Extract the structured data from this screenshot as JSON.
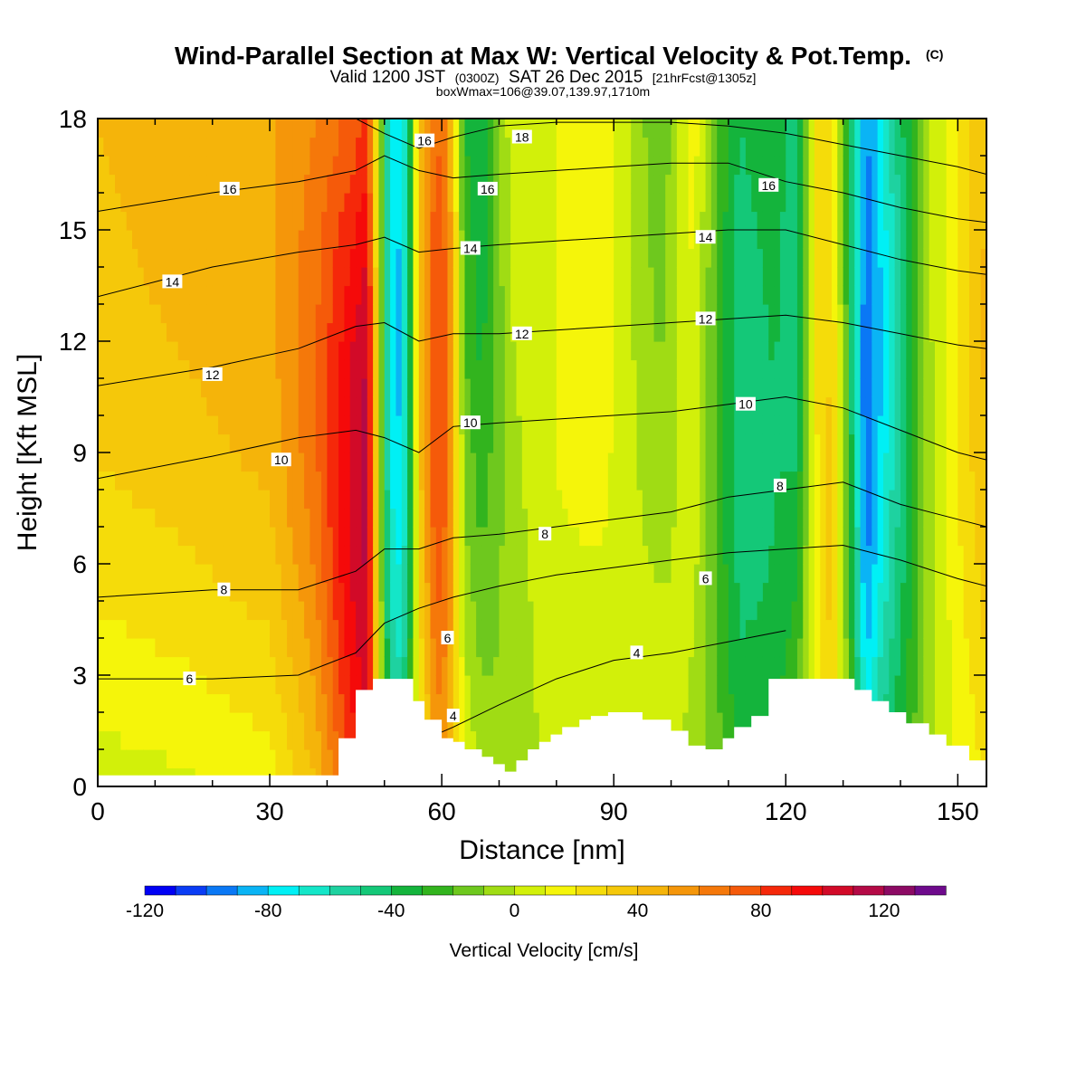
{
  "titles": {
    "main": "Wind-Parallel Section at Max W: Vertical Velocity & Pot.Temp.",
    "copyright": "(C)",
    "valid_prefix": "Valid 1200 JST",
    "valid_utc": "(0300Z)",
    "valid_date": "SAT 26 Dec 2015",
    "valid_fcst": "[21hrFcst@1305z]",
    "box_info": "boxWmax=106@39.07,139.97,1710m"
  },
  "chart_data": {
    "type": "heatmap",
    "xlabel": "Distance [nm]",
    "ylabel": "Height [Kft MSL]",
    "xlim": [
      0,
      155
    ],
    "ylim": [
      0,
      18
    ],
    "x_ticks": [
      0,
      30,
      60,
      90,
      120,
      150
    ],
    "y_ticks": [
      0,
      3,
      6,
      9,
      12,
      15,
      18
    ],
    "colorbar": {
      "label": "Vertical Velocity [cm/s]",
      "ticks": [
        -120,
        -80,
        -40,
        0,
        40,
        80,
        120
      ],
      "levels": [
        -120,
        -110,
        -100,
        -90,
        -80,
        -70,
        -60,
        -50,
        -40,
        -30,
        -20,
        -10,
        0,
        10,
        20,
        30,
        40,
        50,
        60,
        70,
        80,
        90,
        100,
        110,
        120,
        130,
        140
      ],
      "colors": [
        "#0000f5",
        "#0a3cf5",
        "#0a78f5",
        "#0ab4f5",
        "#00f0f5",
        "#14e6c8",
        "#1ed2a0",
        "#14c878",
        "#14b43c",
        "#32b41e",
        "#6ec81e",
        "#a0dc14",
        "#d2f00a",
        "#f5f50a",
        "#f5dc0a",
        "#f5c80a",
        "#f5b40a",
        "#f5960a",
        "#f5780a",
        "#f55a0a",
        "#f5280a",
        "#f50a0a",
        "#d20a28",
        "#b40a46",
        "#8c0a64",
        "#6e0a8c"
      ]
    },
    "w_bands": [
      {
        "x": 0,
        "w_low": 5,
        "w_high": 40
      },
      {
        "x": 15,
        "w_low": 8,
        "w_high": 45
      },
      {
        "x": 30,
        "w_low": 15,
        "w_high": 48
      },
      {
        "x": 38,
        "w_low": 40,
        "w_high": 60
      },
      {
        "x": 44,
        "w_low": 80,
        "w_high": 72
      },
      {
        "x": 47,
        "w_low": 90,
        "w_high": 80
      },
      {
        "x": 50,
        "w_low": -20,
        "w_high": -40
      },
      {
        "x": 52,
        "w_low": -45,
        "w_high": -80
      },
      {
        "x": 54,
        "w_low": -30,
        "w_high": -60
      },
      {
        "x": 56,
        "w_low": 10,
        "w_high": 40
      },
      {
        "x": 59,
        "w_low": 50,
        "w_high": 70
      },
      {
        "x": 61,
        "w_low": 45,
        "w_high": 60
      },
      {
        "x": 64,
        "w_low": 10,
        "w_high": -30
      },
      {
        "x": 67,
        "w_low": 0,
        "w_high": -40
      },
      {
        "x": 72,
        "w_low": -10,
        "w_high": 5
      },
      {
        "x": 80,
        "w_low": 5,
        "w_high": 10
      },
      {
        "x": 88,
        "w_low": 0,
        "w_high": 20
      },
      {
        "x": 94,
        "w_low": 5,
        "w_high": -5
      },
      {
        "x": 98,
        "w_low": 10,
        "w_high": -20
      },
      {
        "x": 104,
        "w_low": -5,
        "w_high": 15
      },
      {
        "x": 108,
        "w_low": -15,
        "w_high": -20
      },
      {
        "x": 112,
        "w_low": -30,
        "w_high": -40
      },
      {
        "x": 118,
        "w_low": -30,
        "w_high": -30
      },
      {
        "x": 122,
        "w_low": -10,
        "w_high": -50
      },
      {
        "x": 125,
        "w_low": 5,
        "w_high": 20
      },
      {
        "x": 128,
        "w_low": 30,
        "w_high": 20
      },
      {
        "x": 131,
        "w_low": -10,
        "w_high": -30
      },
      {
        "x": 134,
        "w_low": -60,
        "w_high": -90
      },
      {
        "x": 137,
        "w_low": -40,
        "w_high": -70
      },
      {
        "x": 141,
        "w_low": -25,
        "w_high": -35
      },
      {
        "x": 145,
        "w_low": -5,
        "w_high": 0
      },
      {
        "x": 150,
        "w_low": 10,
        "w_high": 20
      },
      {
        "x": 155,
        "w_low": 20,
        "w_high": 40
      }
    ],
    "potential_temperature_contours": [
      {
        "label": "4",
        "x": [
          43,
          50,
          56,
          62,
          70,
          80,
          90,
          100,
          110,
          120
        ],
        "y": [
          0.5,
          0.8,
          1.2,
          1.6,
          2.2,
          2.9,
          3.4,
          3.6,
          3.9,
          4.2
        ]
      },
      {
        "label": "6",
        "x": [
          0,
          20,
          35,
          45,
          50,
          56,
          62,
          70,
          80,
          90,
          100,
          110,
          120,
          130,
          140,
          150,
          155
        ],
        "y": [
          2.9,
          2.9,
          3.0,
          3.6,
          4.4,
          4.8,
          5.1,
          5.4,
          5.7,
          5.9,
          6.1,
          6.3,
          6.4,
          6.5,
          6.1,
          5.6,
          5.4
        ]
      },
      {
        "label": "8",
        "x": [
          0,
          20,
          35,
          45,
          50,
          56,
          62,
          70,
          80,
          90,
          100,
          110,
          120,
          130,
          140,
          150,
          155
        ],
        "y": [
          5.1,
          5.3,
          5.3,
          5.8,
          6.4,
          6.4,
          6.7,
          6.8,
          7.0,
          7.2,
          7.4,
          7.8,
          8.0,
          8.2,
          7.6,
          7.2,
          7.0
        ]
      },
      {
        "label": "10",
        "x": [
          0,
          20,
          35,
          45,
          50,
          56,
          62,
          70,
          80,
          90,
          100,
          110,
          120,
          130,
          140,
          150,
          155
        ],
        "y": [
          8.3,
          8.9,
          9.4,
          9.6,
          9.4,
          9.0,
          9.7,
          9.8,
          9.9,
          10.0,
          10.1,
          10.3,
          10.5,
          10.2,
          9.6,
          9.0,
          8.8
        ]
      },
      {
        "label": "12",
        "x": [
          0,
          20,
          35,
          45,
          50,
          56,
          62,
          70,
          80,
          90,
          100,
          110,
          120,
          130,
          140,
          150,
          155
        ],
        "y": [
          10.8,
          11.3,
          11.8,
          12.4,
          12.5,
          12.0,
          12.2,
          12.2,
          12.3,
          12.4,
          12.5,
          12.6,
          12.7,
          12.5,
          12.2,
          11.9,
          11.8
        ]
      },
      {
        "label": "14",
        "x": [
          0,
          20,
          35,
          45,
          50,
          56,
          62,
          70,
          80,
          90,
          100,
          110,
          120,
          130,
          140,
          150,
          155
        ],
        "y": [
          13.2,
          14.0,
          14.4,
          14.6,
          14.8,
          14.4,
          14.5,
          14.6,
          14.7,
          14.8,
          14.9,
          15.0,
          15.0,
          14.6,
          14.2,
          13.9,
          13.8
        ]
      },
      {
        "label": "16",
        "x": [
          0,
          20,
          35,
          45,
          50,
          56,
          62,
          70,
          80,
          90,
          100,
          110,
          120,
          130,
          140,
          150,
          155
        ],
        "y": [
          15.5,
          16.0,
          16.3,
          16.6,
          17.0,
          16.6,
          16.4,
          16.5,
          16.6,
          16.7,
          16.8,
          16.8,
          16.3,
          16.0,
          15.6,
          15.3,
          15.2
        ]
      },
      {
        "label": "18",
        "x": [
          45,
          50,
          56,
          62,
          70,
          80,
          90,
          100,
          110,
          120,
          130,
          140,
          150,
          155
        ],
        "y": [
          18.0,
          17.6,
          17.2,
          17.5,
          17.8,
          17.9,
          17.9,
          17.9,
          17.8,
          17.6,
          17.3,
          17.0,
          16.7,
          16.5
        ]
      }
    ],
    "contour_labels": [
      {
        "text": "6",
        "x": 16,
        "y": 2.9
      },
      {
        "text": "8",
        "x": 22,
        "y": 5.3
      },
      {
        "text": "10",
        "x": 32,
        "y": 8.8
      },
      {
        "text": "12",
        "x": 20,
        "y": 11.1
      },
      {
        "text": "14",
        "x": 13,
        "y": 13.6
      },
      {
        "text": "16",
        "x": 23,
        "y": 16.1
      },
      {
        "text": "4",
        "x": 62,
        "y": 1.9
      },
      {
        "text": "6",
        "x": 61,
        "y": 4.0
      },
      {
        "text": "8",
        "x": 78,
        "y": 6.8
      },
      {
        "text": "10",
        "x": 65,
        "y": 9.8
      },
      {
        "text": "12",
        "x": 74,
        "y": 12.2
      },
      {
        "text": "14",
        "x": 65,
        "y": 14.5
      },
      {
        "text": "16",
        "x": 68,
        "y": 16.1
      },
      {
        "text": "16",
        "x": 57,
        "y": 17.4
      },
      {
        "text": "18",
        "x": 74,
        "y": 17.5
      },
      {
        "text": "4",
        "x": 94,
        "y": 3.6
      },
      {
        "text": "6",
        "x": 106,
        "y": 5.6
      },
      {
        "text": "8",
        "x": 119,
        "y": 8.1
      },
      {
        "text": "10",
        "x": 113,
        "y": 10.3
      },
      {
        "text": "12",
        "x": 106,
        "y": 12.6
      },
      {
        "text": "14",
        "x": 106,
        "y": 14.8
      },
      {
        "text": "16",
        "x": 117,
        "y": 16.2
      }
    ],
    "terrain": {
      "x": [
        0,
        42,
        42,
        45,
        45,
        48,
        48,
        50,
        50,
        53,
        53,
        55,
        55,
        57,
        57,
        60,
        60,
        62,
        62,
        64,
        64,
        67,
        67,
        69,
        69,
        71,
        71,
        73,
        73,
        75,
        75,
        77,
        77,
        79,
        79,
        81,
        81,
        84,
        84,
        86,
        86,
        89,
        89,
        91,
        91,
        95,
        95,
        100,
        100,
        103,
        103,
        106,
        106,
        109,
        109,
        111,
        111,
        114,
        114,
        117,
        117,
        122,
        122,
        126,
        126,
        129,
        129,
        132,
        132,
        135,
        135,
        138,
        138,
        141,
        141,
        145,
        145,
        148,
        148,
        152,
        152,
        155
      ],
      "y": [
        0.3,
        0.3,
        1.3,
        1.3,
        2.6,
        2.6,
        2.9,
        2.9,
        2.9,
        2.9,
        2.9,
        2.9,
        2.3,
        2.3,
        1.8,
        1.8,
        1.3,
        1.3,
        1.2,
        1.2,
        1.0,
        1.0,
        0.8,
        0.8,
        0.6,
        0.6,
        0.4,
        0.4,
        0.7,
        0.7,
        1.0,
        1.0,
        1.2,
        1.2,
        1.4,
        1.4,
        1.6,
        1.6,
        1.8,
        1.8,
        1.9,
        1.9,
        2.0,
        2.0,
        2.0,
        2.0,
        1.8,
        1.8,
        1.5,
        1.5,
        1.1,
        1.1,
        1.0,
        1.0,
        1.3,
        1.3,
        1.6,
        1.6,
        1.9,
        1.9,
        2.9,
        2.9,
        2.9,
        2.9,
        2.9,
        2.9,
        2.9,
        2.9,
        2.6,
        2.6,
        2.3,
        2.3,
        2.0,
        2.0,
        1.7,
        1.7,
        1.4,
        1.4,
        1.1,
        1.1,
        0.7,
        0.7
      ]
    }
  }
}
